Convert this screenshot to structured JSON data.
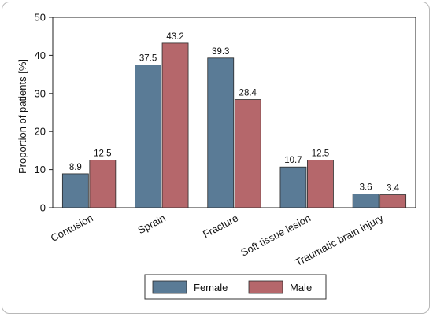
{
  "chart_data": {
    "type": "bar",
    "categories": [
      "Contusion",
      "Sprain",
      "Fracture",
      "Soft tissue lesion",
      "Traumatic brain injury"
    ],
    "series": [
      {
        "name": "Female",
        "values": [
          8.9,
          37.5,
          39.3,
          10.7,
          3.6
        ],
        "color": "#5a7b96"
      },
      {
        "name": "Male",
        "values": [
          12.5,
          43.2,
          28.4,
          12.5,
          3.4
        ],
        "color": "#b5676b"
      }
    ],
    "value_labels": {
      "Female": [
        "8.9",
        "37.5",
        "39.3",
        "10.7",
        "3.6"
      ],
      "Male": [
        "12.5",
        "43.2",
        "28.4",
        "12.5",
        "3.4"
      ]
    },
    "title": "",
    "xlabel": "",
    "ylabel": "Proportion of patients [%]",
    "ylim": [
      0,
      50
    ],
    "yticks": [
      0,
      10,
      20,
      30,
      40,
      50
    ],
    "grid": false,
    "legend_position": "bottom"
  }
}
